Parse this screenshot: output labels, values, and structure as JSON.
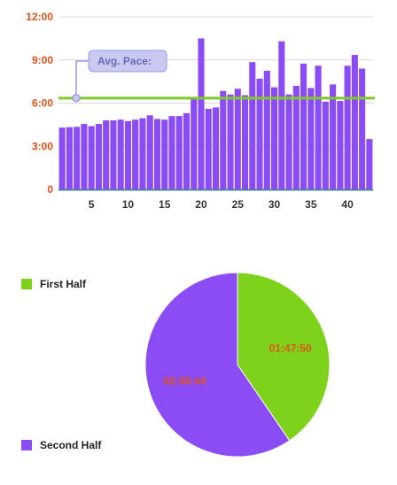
{
  "colors": {
    "bar": "#8c4cf5",
    "avg_line": "#7ccc26",
    "axis_text": "#e0541c",
    "grid": "#d9d9d9",
    "baseline": "#3d8b8b",
    "first_half": "#7ed31a",
    "second_half": "#8c4cf5",
    "pie_label": "#e0541c",
    "tooltip_bg": "#c9c9f2",
    "tooltip_border": "#9a9ae8",
    "tooltip_text": "#6a6ab8"
  },
  "chart_data": [
    {
      "type": "bar",
      "y_unit": "minutes per km",
      "ylim": [
        0,
        12
      ],
      "y_ticks": [
        0,
        3,
        6,
        9,
        12
      ],
      "y_tick_labels": [
        "0",
        "3:00",
        "6:00",
        "9:00",
        "12:00"
      ],
      "x_ticks": [
        5,
        10,
        15,
        20,
        25,
        30,
        35,
        40
      ],
      "x_tick_labels": [
        "5",
        "10",
        "15",
        "20",
        "25",
        "30",
        "35",
        "40"
      ],
      "grid": true,
      "categories": [
        1,
        2,
        3,
        4,
        5,
        6,
        7,
        8,
        9,
        10,
        11,
        12,
        13,
        14,
        15,
        16,
        17,
        18,
        19,
        20,
        21,
        22,
        23,
        24,
        25,
        26,
        27,
        28,
        29,
        30,
        31,
        32,
        33,
        34,
        35,
        36,
        37,
        38,
        39,
        40,
        41,
        42,
        43
      ],
      "values": [
        4.3,
        4.33,
        4.35,
        4.55,
        4.4,
        4.55,
        4.8,
        4.8,
        4.85,
        4.75,
        4.85,
        4.95,
        5.15,
        4.9,
        4.85,
        5.1,
        5.1,
        5.3,
        6.4,
        10.5,
        5.6,
        5.7,
        6.85,
        6.6,
        7.0,
        6.55,
        8.85,
        7.7,
        8.25,
        7.1,
        10.3,
        6.6,
        7.2,
        8.75,
        7.05,
        8.6,
        6.1,
        7.3,
        6.15,
        8.6,
        9.35,
        8.4,
        3.5
      ],
      "avg_value": 6.35,
      "annotation": "Avg. Pace:"
    },
    {
      "type": "pie",
      "slices": [
        {
          "name": "First Half",
          "value": 107.83,
          "label": "01:47:50"
        },
        {
          "name": "Second Half",
          "value": 158.73,
          "label": "02:38:44"
        }
      ],
      "legend_placement": "left"
    }
  ]
}
